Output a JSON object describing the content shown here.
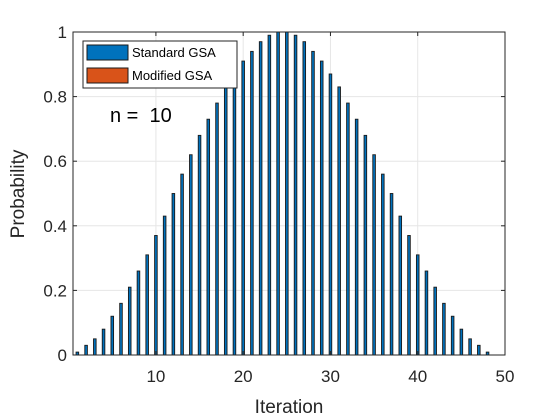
{
  "chart_data": {
    "type": "bar",
    "xlabel": "Iteration",
    "ylabel": "Probability",
    "xlim": [
      0.5,
      50
    ],
    "ylim": [
      0,
      1
    ],
    "xticks": [
      10,
      20,
      30,
      40,
      50
    ],
    "yticks": [
      0,
      0.2,
      0.4,
      0.6,
      0.8,
      1
    ],
    "ytick_labels": [
      "0",
      "0.2",
      "0.4",
      "0.6",
      "0.8",
      "1"
    ],
    "grid": true,
    "legend_position": "top-left",
    "annotation": "n =  10",
    "colors": {
      "standard": "#0072bd",
      "modified": "#d95319",
      "edge": "#1a1a1a"
    },
    "series": [
      {
        "name": "Standard GSA",
        "x": [
          1,
          2,
          3,
          4,
          5,
          6,
          7,
          8,
          9,
          10,
          11,
          12,
          13,
          14,
          15,
          16,
          17,
          18,
          19,
          20,
          21,
          22,
          23,
          24,
          25,
          26,
          27,
          28,
          29,
          30,
          31,
          32,
          33,
          34,
          35,
          36,
          37,
          38,
          39,
          40,
          41,
          42,
          43,
          44,
          45,
          46,
          47,
          48
        ],
        "values": [
          0.009,
          0.03,
          0.05,
          0.08,
          0.12,
          0.16,
          0.21,
          0.26,
          0.31,
          0.37,
          0.43,
          0.5,
          0.56,
          0.62,
          0.68,
          0.73,
          0.78,
          0.83,
          0.87,
          0.91,
          0.94,
          0.97,
          0.99,
          1.0,
          1.0,
          0.99,
          0.97,
          0.94,
          0.91,
          0.87,
          0.83,
          0.78,
          0.73,
          0.68,
          0.62,
          0.56,
          0.5,
          0.43,
          0.37,
          0.31,
          0.26,
          0.21,
          0.16,
          0.12,
          0.08,
          0.05,
          0.03,
          0.009
        ]
      },
      {
        "name": "Modified GSA",
        "x": [],
        "values": []
      }
    ]
  }
}
